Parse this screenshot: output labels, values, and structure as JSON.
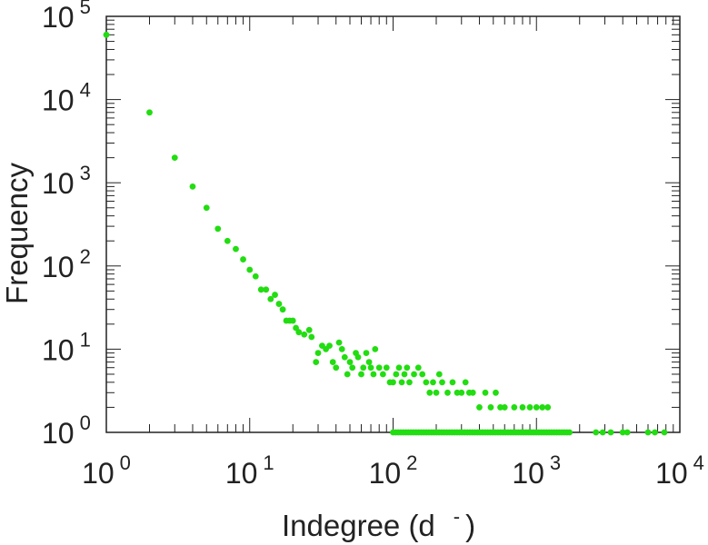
{
  "chart_data": {
    "type": "scatter",
    "xlabel": "Indegree (d",
    "xlabel_sup": "-",
    "xlabel_close": ")",
    "ylabel": "Frequency",
    "xscale": "log",
    "yscale": "log",
    "xlim": [
      1,
      10000
    ],
    "ylim": [
      1,
      100000
    ],
    "grid": false,
    "series": [
      {
        "color": "#22dd11",
        "points": [
          [
            1,
            60000
          ],
          [
            2,
            7000
          ],
          [
            3,
            2000
          ],
          [
            4,
            900
          ],
          [
            5,
            500
          ],
          [
            6,
            280
          ],
          [
            7,
            200
          ],
          [
            8,
            160
          ],
          [
            9,
            120
          ],
          [
            10,
            90
          ],
          [
            11,
            75
          ],
          [
            12,
            52
          ],
          [
            13,
            52
          ],
          [
            14,
            40
          ],
          [
            15,
            45
          ],
          [
            16,
            35
          ],
          [
            17,
            30
          ],
          [
            18,
            22
          ],
          [
            19,
            22
          ],
          [
            20,
            22
          ],
          [
            21,
            18
          ],
          [
            22,
            16
          ],
          [
            24,
            15
          ],
          [
            26,
            17
          ],
          [
            27,
            14
          ],
          [
            29,
            7
          ],
          [
            30,
            9
          ],
          [
            32,
            11
          ],
          [
            34,
            10
          ],
          [
            36,
            11
          ],
          [
            38,
            7
          ],
          [
            40,
            6
          ],
          [
            42,
            12
          ],
          [
            44,
            10
          ],
          [
            46,
            8
          ],
          [
            48,
            5
          ],
          [
            50,
            7
          ],
          [
            52,
            6
          ],
          [
            55,
            9
          ],
          [
            57,
            8
          ],
          [
            60,
            5
          ],
          [
            62,
            6
          ],
          [
            65,
            9
          ],
          [
            68,
            7
          ],
          [
            70,
            6
          ],
          [
            73,
            5
          ],
          [
            75,
            10
          ],
          [
            80,
            6
          ],
          [
            85,
            5
          ],
          [
            90,
            6
          ],
          [
            95,
            4
          ],
          [
            100,
            4
          ],
          [
            105,
            5
          ],
          [
            110,
            6
          ],
          [
            115,
            4
          ],
          [
            120,
            5
          ],
          [
            125,
            6
          ],
          [
            130,
            4
          ],
          [
            140,
            5
          ],
          [
            150,
            6
          ],
          [
            160,
            5
          ],
          [
            170,
            4
          ],
          [
            180,
            3
          ],
          [
            190,
            4
          ],
          [
            200,
            3
          ],
          [
            210,
            5
          ],
          [
            220,
            4
          ],
          [
            240,
            3
          ],
          [
            260,
            4
          ],
          [
            280,
            3
          ],
          [
            300,
            3
          ],
          [
            320,
            4
          ],
          [
            340,
            3
          ],
          [
            360,
            3
          ],
          [
            400,
            2
          ],
          [
            440,
            3
          ],
          [
            480,
            2
          ],
          [
            520,
            3
          ],
          [
            560,
            2
          ],
          [
            600,
            2
          ],
          [
            700,
            2
          ],
          [
            800,
            2
          ],
          [
            900,
            2
          ],
          [
            1000,
            2
          ],
          [
            1100,
            2
          ],
          [
            1200,
            2
          ]
        ]
      }
    ]
  }
}
